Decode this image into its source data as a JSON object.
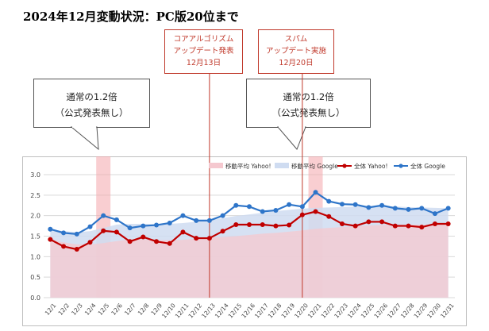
{
  "page": {
    "title": "2024年12月変動状況：PC版20位まで"
  },
  "events": [
    {
      "line1": "コアアルゴリズム",
      "line2": "アップデート発表",
      "line3": "12月13日"
    },
    {
      "line1": "スパム",
      "line2": "アップデート実施",
      "line3": "12月20日"
    }
  ],
  "callouts": [
    {
      "line1": "通常の1.2倍",
      "line2": "（公式発表無し）"
    },
    {
      "line1": "通常の1.2倍",
      "line2": "（公式発表無し）"
    }
  ],
  "colors": {
    "yahoo": "#c00000",
    "google": "#2e75c9",
    "yahoo_band": "#f5c8cf",
    "google_band": "#cfdcf1",
    "highlight": "#f4a5ab",
    "event_line": "#c0392b"
  },
  "chart_data": {
    "type": "line",
    "categories": [
      "12/1",
      "12/2",
      "12/3",
      "12/4",
      "12/5",
      "12/6",
      "12/7",
      "12/8",
      "12/9",
      "12/10",
      "12/11",
      "12/12",
      "12/13",
      "12/14",
      "12/15",
      "12/16",
      "12/17",
      "12/18",
      "12/19",
      "12/20",
      "12/21",
      "12/22",
      "12/23",
      "12/24",
      "12/25",
      "12/26",
      "12/27",
      "12/28",
      "12/29",
      "12/30",
      "12/31"
    ],
    "series": [
      {
        "name": "移動平均 Yahoo!",
        "kind": "area",
        "values": [
          1.42,
          1.35,
          1.3,
          1.3,
          1.33,
          1.38,
          1.42,
          1.42,
          1.4,
          1.4,
          1.41,
          1.44,
          1.46,
          1.48,
          1.5,
          1.53,
          1.56,
          1.58,
          1.61,
          1.64,
          1.68,
          1.7,
          1.72,
          1.74,
          1.76,
          1.77,
          1.78,
          1.78,
          1.78,
          1.78,
          1.79
        ]
      },
      {
        "name": "移動平均 Google",
        "kind": "area",
        "values": [
          1.67,
          1.62,
          1.6,
          1.62,
          1.7,
          1.78,
          1.8,
          1.8,
          1.79,
          1.8,
          1.82,
          1.85,
          1.89,
          1.94,
          1.99,
          2.03,
          2.07,
          2.11,
          2.14,
          2.17,
          2.19,
          2.2,
          2.21,
          2.22,
          2.23,
          2.23,
          2.22,
          2.21,
          2.2,
          2.19,
          2.18
        ]
      },
      {
        "name": "全体 Yahoo!",
        "kind": "line",
        "values": [
          1.42,
          1.25,
          1.18,
          1.35,
          1.63,
          1.6,
          1.37,
          1.48,
          1.37,
          1.32,
          1.6,
          1.45,
          1.45,
          1.62,
          1.78,
          1.78,
          1.78,
          1.75,
          1.77,
          2.02,
          2.1,
          1.98,
          1.8,
          1.75,
          1.85,
          1.85,
          1.75,
          1.75,
          1.72,
          1.8,
          1.8
        ]
      },
      {
        "name": "全体 Google",
        "kind": "line",
        "values": [
          1.67,
          1.58,
          1.55,
          1.73,
          2.0,
          1.9,
          1.7,
          1.75,
          1.77,
          1.82,
          2.0,
          1.88,
          1.88,
          2.0,
          2.25,
          2.22,
          2.1,
          2.13,
          2.27,
          2.22,
          2.57,
          2.35,
          2.28,
          2.27,
          2.2,
          2.25,
          2.18,
          2.15,
          2.18,
          2.05,
          2.18
        ]
      }
    ],
    "highlight_categories": [
      "12/5",
      "12/21"
    ],
    "event_categories": [
      "12/13",
      "12/20"
    ],
    "ylim": [
      0.0,
      3.0
    ],
    "yticks": [
      "0.0",
      "0.5",
      "1.0",
      "1.5",
      "2.0",
      "2.5",
      "3.0"
    ],
    "grid": true,
    "legend": "top-right"
  }
}
